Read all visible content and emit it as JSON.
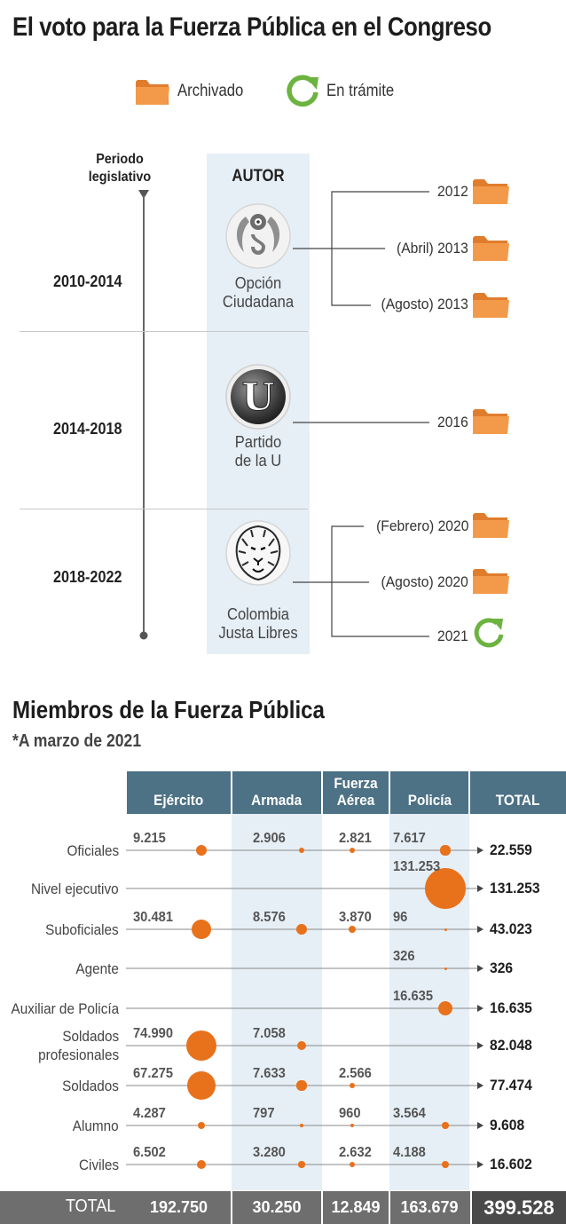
{
  "title": "El voto para la Fuerza Pública en el Congreso",
  "legend": {
    "archived": {
      "label": "Archivado",
      "icon": "folder-icon",
      "color": "#f0913e"
    },
    "pending": {
      "label": "En trámite",
      "icon": "refresh-icon",
      "color": "#6cb33f"
    }
  },
  "timeline": {
    "period_header": [
      "Periodo",
      "legislativo"
    ],
    "author_header": "AUTOR",
    "periods": [
      {
        "period": "2010-2014",
        "party": [
          "Opción",
          "Ciudadana"
        ],
        "logo": "opcion-ciudadana-logo",
        "bills": [
          {
            "label": "2012",
            "status": "Archivado"
          },
          {
            "label": "(Abril) 2013",
            "status": "Archivado"
          },
          {
            "label": "(Agosto) 2013",
            "status": "Archivado"
          }
        ]
      },
      {
        "period": "2014-2018",
        "party": [
          "Partido",
          "de la U"
        ],
        "logo": "partido-de-la-u-logo",
        "logo_letter": "U",
        "bills": [
          {
            "label": "2016",
            "status": "Archivado"
          }
        ]
      },
      {
        "period": "2018-2022",
        "party": [
          "Colombia",
          "Justa Libres"
        ],
        "logo": "colombia-justa-libres-logo",
        "bills": [
          {
            "label": "(Febrero) 2020",
            "status": "Archivado"
          },
          {
            "label": "(Agosto) 2020",
            "status": "Archivado"
          },
          {
            "label": "2021",
            "status": "En trámite"
          }
        ]
      }
    ]
  },
  "members": {
    "title": "Miembros de la Fuerza Pública",
    "note": "*A marzo de 2021"
  },
  "chart_data": {
    "type": "table",
    "title": "Miembros de la Fuerza Pública",
    "subtitle": "*A marzo de 2021",
    "bubble_color": "#e8711c",
    "columns": [
      "Ejército",
      "Armada",
      "Fuerza Aérea",
      "Policía",
      "TOTAL"
    ],
    "rows": [
      {
        "label": "Oficiales",
        "values": [
          "9.215",
          "2.906",
          "2.821",
          "7.617"
        ],
        "total": "22.559"
      },
      {
        "label": "Nivel ejecutivo",
        "values": [
          "",
          "",
          "",
          "131.253"
        ],
        "total": "131.253"
      },
      {
        "label": "Suboficiales",
        "values": [
          "30.481",
          "8.576",
          "3.870",
          "96"
        ],
        "total": "43.023"
      },
      {
        "label": "Agente",
        "values": [
          "",
          "",
          "",
          "326"
        ],
        "total": "326"
      },
      {
        "label": "Auxiliar de Policía",
        "values": [
          "",
          "",
          "",
          "16.635"
        ],
        "total": "16.635"
      },
      {
        "label": "Soldados profesionales",
        "values": [
          "74.990",
          "7.058",
          "",
          ""
        ],
        "total": "82.048"
      },
      {
        "label": "Soldados",
        "values": [
          "67.275",
          "7.633",
          "2.566",
          ""
        ],
        "total": "77.474"
      },
      {
        "label": "Alumno",
        "values": [
          "4.287",
          "797",
          "960",
          "3.564"
        ],
        "total": "9.608"
      },
      {
        "label": "Civiles",
        "values": [
          "6.502",
          "3.280",
          "2.632",
          "4.188"
        ],
        "total": "16.602"
      }
    ],
    "totals": {
      "label": "TOTAL",
      "values": [
        "192.750",
        "30.250",
        "12.849",
        "163.679"
      ],
      "grand_total": "399.528"
    }
  }
}
